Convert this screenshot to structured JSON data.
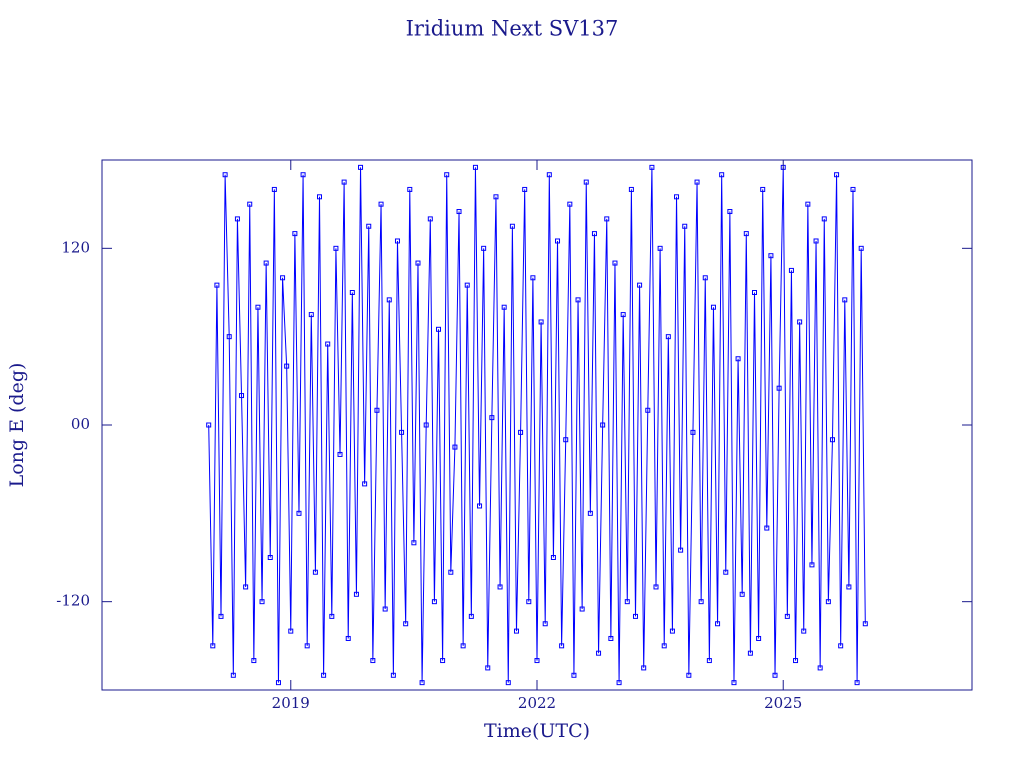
{
  "chart_data": {
    "type": "scatter",
    "title": "Iridium Next SV137",
    "xlabel": "Time(UTC)",
    "ylabel": "Long E (deg)",
    "xlim": [
      2016.7,
      2027.3
    ],
    "xticks": [
      2019,
      2022,
      2025
    ],
    "ylim": [
      -180,
      180
    ],
    "yticks": [
      -120,
      {
        "value": 0,
        "label": "00"
      },
      120
    ],
    "axis_color": "#1a1a8c",
    "series": [
      {
        "color": "#0000ff",
        "x": [
          2018,
          2018.05,
          2018.1,
          2018.15,
          2018.2,
          2018.25,
          2018.3,
          2018.35,
          2018.4,
          2018.45,
          2018.5,
          2018.55,
          2018.6,
          2018.65,
          2018.7,
          2018.75,
          2018.8,
          2018.85,
          2018.9,
          2018.95,
          2019,
          2019.05,
          2019.1,
          2019.15,
          2019.2,
          2019.25,
          2019.3,
          2019.35,
          2019.4,
          2019.45,
          2019.5,
          2019.55,
          2019.6,
          2019.65,
          2019.7,
          2019.75,
          2019.8,
          2019.85,
          2019.9,
          2019.95,
          2020,
          2020.05,
          2020.1,
          2020.15,
          2020.2,
          2020.25,
          2020.3,
          2020.35,
          2020.4,
          2020.45,
          2020.5,
          2020.55,
          2020.6,
          2020.65,
          2020.7,
          2020.75,
          2020.8,
          2020.85,
          2020.9,
          2020.95,
          2021,
          2021.05,
          2021.1,
          2021.15,
          2021.2,
          2021.25,
          2021.3,
          2021.35,
          2021.4,
          2021.45,
          2021.5,
          2021.55,
          2021.6,
          2021.65,
          2021.7,
          2021.75,
          2021.8,
          2021.85,
          2021.9,
          2021.95,
          2022,
          2022.05,
          2022.1,
          2022.15,
          2022.2,
          2022.25,
          2022.3,
          2022.35,
          2022.4,
          2022.45,
          2022.5,
          2022.55,
          2022.6,
          2022.65,
          2022.7,
          2022.75,
          2022.8,
          2022.85,
          2022.9,
          2022.95,
          2023,
          2023.05,
          2023.1,
          2023.15,
          2023.2,
          2023.25,
          2023.3,
          2023.35,
          2023.4,
          2023.45,
          2023.5,
          2023.55,
          2023.6,
          2023.65,
          2023.7,
          2023.75,
          2023.8,
          2023.85,
          2023.9,
          2023.95,
          2024,
          2024.05,
          2024.1,
          2024.15,
          2024.2,
          2024.25,
          2024.3,
          2024.35,
          2024.4,
          2024.45,
          2024.5,
          2024.55,
          2024.6,
          2024.65,
          2024.7,
          2024.75,
          2024.8,
          2024.85,
          2024.9,
          2024.95,
          2025,
          2025.05,
          2025.1,
          2025.15,
          2025.2,
          2025.25,
          2025.3,
          2025.35,
          2025.4,
          2025.45,
          2025.5,
          2025.55,
          2025.6,
          2025.65,
          2025.7,
          2025.75,
          2025.8,
          2025.85,
          2025.9,
          2025.95,
          2026
        ],
        "values": [
          0,
          -150,
          95,
          -130,
          170,
          60,
          -170,
          140,
          20,
          -110,
          150,
          -160,
          80,
          -120,
          110,
          -90,
          160,
          -175,
          100,
          40,
          -140,
          130,
          -60,
          170,
          -150,
          75,
          -100,
          155,
          -170,
          55,
          -130,
          120,
          -20,
          165,
          -145,
          90,
          -115,
          175,
          -40,
          135,
          -160,
          10,
          150,
          -125,
          85,
          -170,
          125,
          -5,
          -135,
          160,
          -80,
          110,
          -175,
          0,
          140,
          -120,
          65,
          -160,
          170,
          -100,
          -15,
          145,
          -150,
          95,
          -130,
          175,
          -55,
          120,
          -165,
          5,
          155,
          -110,
          80,
          -175,
          135,
          -140,
          -5,
          160,
          -120,
          100,
          -160,
          70,
          -135,
          170,
          -90,
          125,
          -150,
          -10,
          150,
          -170,
          85,
          -125,
          165,
          -60,
          130,
          -155,
          0,
          140,
          -145,
          110,
          -175,
          75,
          -120,
          160,
          -130,
          95,
          -165,
          10,
          175,
          -110,
          120,
          -150,
          60,
          -140,
          155,
          -85,
          135,
          -170,
          -5,
          165,
          -120,
          100,
          -160,
          80,
          -135,
          170,
          -100,
          145,
          -175,
          45,
          -115,
          130,
          -155,
          90,
          -145,
          160,
          -70,
          115,
          -170,
          25,
          175,
          -130,
          105,
          -160,
          70,
          -140,
          150,
          -95,
          125,
          -165,
          140,
          -120,
          -10,
          170,
          -150,
          85,
          -110,
          160,
          -175,
          120,
          -135
        ]
      }
    ]
  }
}
